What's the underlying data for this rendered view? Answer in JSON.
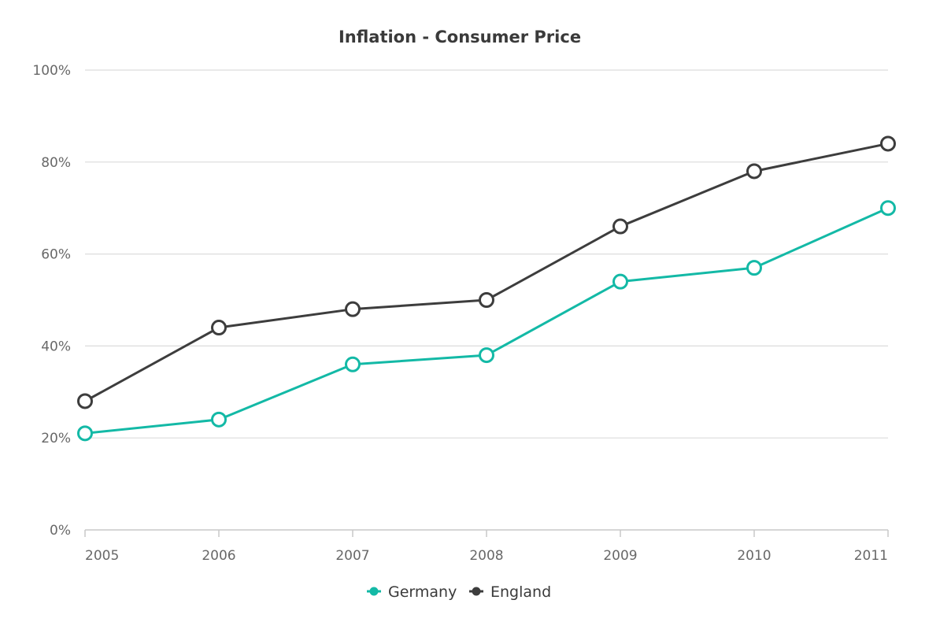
{
  "chart_data": {
    "type": "line",
    "title": "Inflation - Consumer Price",
    "xlabel": "",
    "ylabel": "",
    "categories": [
      "2005",
      "2006",
      "2007",
      "2008",
      "2009",
      "2010",
      "2011"
    ],
    "ylim": [
      0,
      100
    ],
    "y_ticks": [
      0,
      20,
      40,
      60,
      80,
      100
    ],
    "y_tick_labels": [
      "0%",
      "20%",
      "40%",
      "60%",
      "80%",
      "100%"
    ],
    "grid": true,
    "legend_position": "bottom-center",
    "series": [
      {
        "name": "Germany",
        "color": "#13b9a6",
        "values": [
          21,
          24,
          36,
          38,
          54,
          57,
          70
        ]
      },
      {
        "name": "England",
        "color": "#3d3d3d",
        "values": [
          28,
          44,
          48,
          50,
          66,
          78,
          84
        ]
      }
    ],
    "colors": {
      "grid": "#dcdcdc",
      "axis": "#c8c8c8",
      "marker_fill": "#ffffff"
    }
  }
}
